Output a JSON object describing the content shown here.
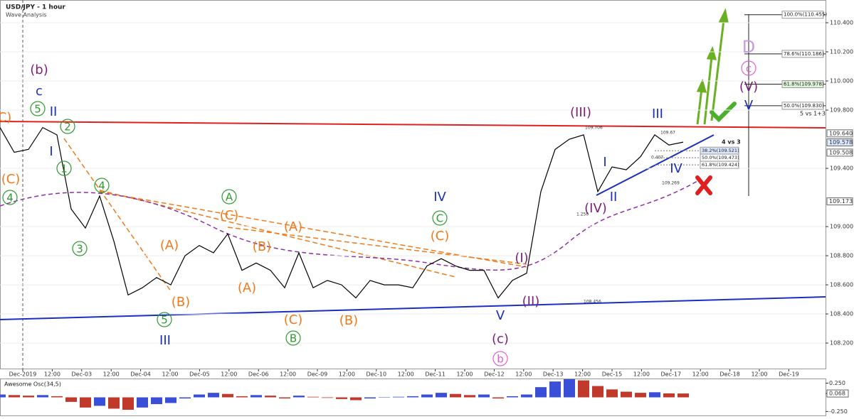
{
  "chart_data": [
    {
      "type": "line",
      "title": "USD/JPY - 1 hour",
      "subtitle": "Wave Analysis",
      "series": [
        {
          "color": "#000000",
          "values": [
            109.68,
            109.51,
            109.53,
            109.68,
            109.63,
            109.12,
            108.99,
            109.21,
            108.9,
            108.53,
            108.58,
            108.65,
            108.6,
            108.8,
            108.87,
            108.82,
            108.95,
            108.7,
            108.75,
            108.7,
            108.58,
            108.82,
            108.58,
            108.63,
            108.6,
            108.51,
            108.63,
            108.6,
            108.6,
            108.58,
            108.73,
            108.78,
            108.73,
            108.7,
            108.7,
            108.51,
            108.63,
            108.68,
            109.24,
            109.53,
            109.6,
            109.63,
            109.24,
            109.41,
            109.39,
            109.48,
            109.63,
            109.56,
            109.58
          ]
        }
      ],
      "ylim": [
        108.02,
        110.556
      ],
      "yticks": [
        {
          "value": 110.4,
          "label": "110.400"
        },
        {
          "value": 110.2,
          "label": "110.200"
        },
        {
          "value": 110.0,
          "label": "110.000"
        },
        {
          "value": 109.8,
          "label": "109.800"
        },
        {
          "value": 109.4,
          "label": "109.400"
        },
        {
          "value": 109.0,
          "label": "109.000"
        },
        {
          "value": 108.8,
          "label": "108.800"
        },
        {
          "value": 108.6,
          "label": "108.600"
        },
        {
          "value": 108.4,
          "label": "108.400"
        },
        {
          "value": 108.2,
          "label": "108.200"
        }
      ],
      "price_labels": [
        {
          "value": 109.64,
          "label": "109.640"
        },
        {
          "value": 109.578,
          "label": "109.578"
        },
        {
          "value": 109.508,
          "label": "109.508"
        },
        {
          "value": 109.173,
          "label": "109.173"
        }
      ],
      "time_labels": [
        "Dec-2019",
        "12:00",
        "Dec-03",
        "12:00",
        "Dec-04",
        "12:00",
        "Dec-05",
        "12:00",
        "Dec-06",
        "12:00",
        "Dec-09",
        "12:00",
        "Dec-10",
        "12:00",
        "Dec-11",
        "12:00",
        "Dec-12",
        "12:00",
        "Dec-13",
        "12:00",
        "Dec-15",
        "12:00",
        "Dec-17",
        "12:00",
        "Dec-18",
        "12:00",
        "Dec-19"
      ],
      "fib_levels": [
        {
          "value": 110.455,
          "label": "100.0%(110.455)"
        },
        {
          "value": 110.186,
          "label": "78.6%(110.186)"
        },
        {
          "value": 109.978,
          "label": "61.8%(109.978)"
        },
        {
          "value": 109.83,
          "label": "50.0%(109.830)"
        }
      ],
      "fib_note": "5 vs 1+3",
      "small_fib_levels": [
        {
          "value": 109.521,
          "label": "38.2%(109.521)"
        },
        {
          "value": 109.473,
          "label": "50.0%(109.473)"
        },
        {
          "value": 109.424,
          "label": "61.8%(109.424)"
        }
      ],
      "small_fib_note": "4 vs 3",
      "chart_notes": [
        "109.706",
        "109.67",
        "0.407",
        "109.269",
        "1.250",
        "108.456"
      ],
      "wave_labels": [
        {
          "text": "(C)",
          "color": "#f07a1a",
          "circled": false
        },
        {
          "text": "(b)",
          "color": "#7b1f7b",
          "circled": false
        },
        {
          "text": "c",
          "color": "#1a2fc0",
          "circled": false
        },
        {
          "text": "5",
          "color": "#2e9a2e",
          "circled": true
        },
        {
          "text": "II",
          "color": "#1a2fc0",
          "circled": false
        },
        {
          "text": "2",
          "color": "#2e9a2e",
          "circled": true
        },
        {
          "text": "I",
          "color": "#1a2fc0",
          "circled": false
        },
        {
          "text": "1",
          "color": "#2e9a2e",
          "circled": true
        },
        {
          "text": "(C)",
          "color": "#f07a1a",
          "circled": false
        },
        {
          "text": "4",
          "color": "#2e9a2e",
          "circled": true
        },
        {
          "text": "4",
          "color": "#2e9a2e",
          "circled": true
        },
        {
          "text": "3",
          "color": "#2e9a2e",
          "circled": true
        },
        {
          "text": "A",
          "color": "#2e9a2e",
          "circled": true
        },
        {
          "text": "(C)",
          "color": "#f07a1a",
          "circled": false
        },
        {
          "text": "(A)",
          "color": "#f07a1a",
          "circled": false
        },
        {
          "text": "(A)",
          "color": "#f07a1a",
          "circled": false
        },
        {
          "text": "(B)",
          "color": "#f07a1a",
          "circled": false
        },
        {
          "text": "(A)",
          "color": "#f07a1a",
          "circled": false
        },
        {
          "text": "(B)",
          "color": "#f07a1a",
          "circled": false
        },
        {
          "text": "5",
          "color": "#2e9a2e",
          "circled": true
        },
        {
          "text": "III",
          "color": "#1a2fc0",
          "circled": false
        },
        {
          "text": "(C)",
          "color": "#f07a1a",
          "circled": false
        },
        {
          "text": "B",
          "color": "#2e9a2e",
          "circled": true
        },
        {
          "text": "(B)",
          "color": "#f07a1a",
          "circled": false
        },
        {
          "text": "IV",
          "color": "#1a2fc0",
          "circled": false
        },
        {
          "text": "C",
          "color": "#2e9a2e",
          "circled": true
        },
        {
          "text": "(C)",
          "color": "#f07a1a",
          "circled": false
        },
        {
          "text": "V",
          "color": "#1a2fc0",
          "circled": false
        },
        {
          "text": "(c)",
          "color": "#7b1f7b",
          "circled": false
        },
        {
          "text": "b",
          "color": "#e060d0",
          "circled": true
        },
        {
          "text": "(I)",
          "color": "#7b1f7b",
          "circled": false
        },
        {
          "text": "(II)",
          "color": "#7b1f7b",
          "circled": false
        },
        {
          "text": "(III)",
          "color": "#7b1f7b",
          "circled": false
        },
        {
          "text": "(IV)",
          "color": "#7b1f7b",
          "circled": false
        },
        {
          "text": "I",
          "color": "#1a2fc0",
          "circled": false
        },
        {
          "text": "II",
          "color": "#1a2fc0",
          "circled": false
        },
        {
          "text": "III",
          "color": "#1a2fc0",
          "circled": false
        },
        {
          "text": "IV",
          "color": "#1a2fc0",
          "circled": false
        },
        {
          "text": "D",
          "color": "#c79be8",
          "circled": false
        },
        {
          "text": "c",
          "color": "#e060d0",
          "circled": true
        },
        {
          "text": "(V)",
          "color": "#7b1f7b",
          "circled": false
        },
        {
          "text": "V",
          "color": "#1a2fc0",
          "circled": false
        }
      ]
    },
    {
      "type": "bar",
      "title": "Awesome Osc(34,5)",
      "values": [
        0.05,
        0.04,
        0.03,
        0.04,
        0.02,
        -0.08,
        -0.18,
        -0.15,
        -0.2,
        -0.22,
        -0.18,
        -0.12,
        -0.1,
        -0.02,
        0.05,
        0.08,
        0.06,
        0.02,
        0.04,
        0.03,
        -0.02,
        0.03,
        0.01,
        -0.01,
        -0.03,
        -0.05,
        -0.02,
        0.0,
        0.01,
        0.02,
        0.05,
        0.08,
        0.06,
        0.04,
        0.05,
        -0.02,
        0.02,
        0.05,
        0.18,
        0.28,
        0.32,
        0.3,
        0.2,
        0.14,
        0.1,
        0.08,
        0.09,
        0.07,
        0.068
      ],
      "ylim": [
        -0.32,
        0.32
      ],
      "yticks": [
        {
          "value": 0.25,
          "label": "0.250"
        },
        {
          "value": 0.068,
          "label": "0.068"
        },
        {
          "value": -0.25,
          "label": "-0.250"
        }
      ]
    }
  ]
}
